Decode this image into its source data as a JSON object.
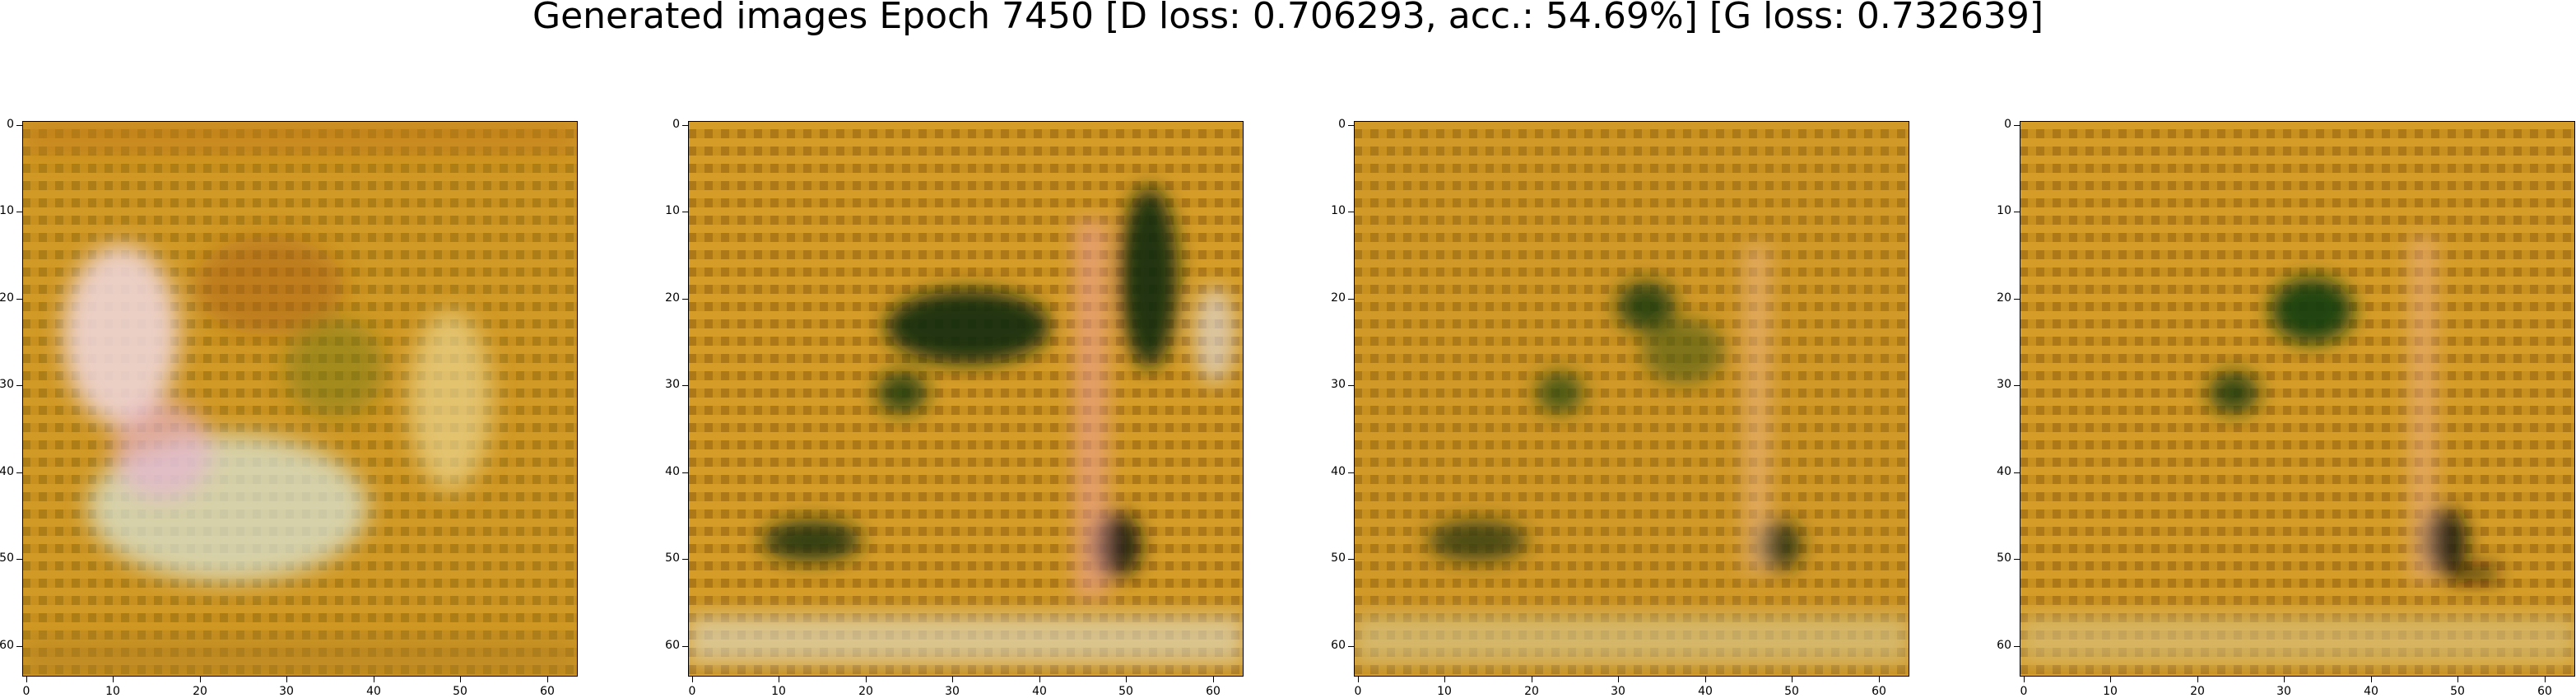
{
  "figure": {
    "suptitle": "Generated images Epoch 7450 [D loss: 0.706293, acc.: 54.69%] [G loss: 0.732639]"
  },
  "panels": [
    {
      "id": "generated-image-1",
      "dominant_colors": [
        "#c8901e",
        "#8a6a10",
        "#e8c8d8",
        "#3a5a1a",
        "#d86a3a"
      ]
    },
    {
      "id": "generated-image-2",
      "dominant_colors": [
        "#c8901e",
        "#1a3a10",
        "#e88a8a",
        "#e8c870",
        "#d8d8c8"
      ]
    },
    {
      "id": "generated-image-3",
      "dominant_colors": [
        "#c8901e",
        "#2a4a10",
        "#e8a870",
        "#d8c8a0"
      ]
    },
    {
      "id": "generated-image-4",
      "dominant_colors": [
        "#c8901e",
        "#1a3a10",
        "#e8a870",
        "#d85a3a"
      ]
    }
  ],
  "axes": {
    "x_ticks": [
      "0",
      "10",
      "20",
      "30",
      "40",
      "50",
      "60"
    ],
    "y_ticks": [
      "0",
      "10",
      "20",
      "30",
      "40",
      "50",
      "60"
    ],
    "range": [
      0,
      64
    ]
  }
}
